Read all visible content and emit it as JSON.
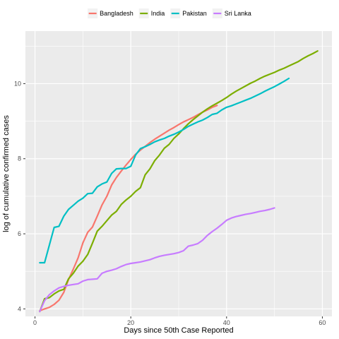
{
  "chart_data": {
    "type": "line",
    "title": "",
    "xlabel": "Days since 50th Case Reported",
    "ylabel": "log of cumulative confirmed cases",
    "xlim": [
      -2,
      62
    ],
    "ylim": [
      3.8,
      11.4
    ],
    "x_ticks": [
      0,
      20,
      40,
      60
    ],
    "y_ticks": [
      4,
      6,
      8,
      10
    ],
    "grid": true,
    "legend_position": "top",
    "series": [
      {
        "name": "Bangladesh",
        "color": "#F8766D",
        "x": [
          1,
          2,
          3,
          4,
          5,
          6,
          7,
          8,
          9,
          10,
          11,
          12,
          13,
          14,
          15,
          16,
          17,
          18,
          19,
          20,
          21,
          22,
          23,
          24,
          25,
          26,
          27,
          28,
          29,
          30,
          31,
          32,
          33,
          34,
          35,
          36,
          37,
          38
        ],
        "y": [
          3.95,
          4.0,
          4.04,
          4.12,
          4.23,
          4.44,
          4.78,
          5.06,
          5.36,
          5.76,
          6.04,
          6.18,
          6.47,
          6.77,
          7.0,
          7.3,
          7.5,
          7.67,
          7.83,
          7.98,
          8.12,
          8.23,
          8.33,
          8.43,
          8.52,
          8.6,
          8.68,
          8.76,
          8.83,
          8.91,
          8.98,
          9.04,
          9.1,
          9.17,
          9.24,
          9.3,
          9.37,
          9.42
        ]
      },
      {
        "name": "India",
        "color": "#7CAE00",
        "x": [
          1,
          2,
          3,
          4,
          5,
          6,
          7,
          8,
          9,
          10,
          11,
          12,
          13,
          14,
          15,
          16,
          17,
          18,
          19,
          20,
          21,
          22,
          23,
          24,
          25,
          26,
          27,
          28,
          29,
          30,
          31,
          32,
          33,
          34,
          35,
          36,
          37,
          38,
          39,
          40,
          41,
          42,
          43,
          44,
          45,
          46,
          47,
          48,
          49,
          50,
          51,
          52,
          53,
          54,
          55,
          56,
          57,
          58,
          59
        ],
        "y": [
          3.93,
          4.27,
          4.3,
          4.4,
          4.48,
          4.52,
          4.8,
          4.95,
          5.14,
          5.27,
          5.45,
          5.75,
          6.07,
          6.2,
          6.35,
          6.5,
          6.6,
          6.78,
          6.9,
          7.0,
          7.13,
          7.23,
          7.57,
          7.73,
          7.95,
          8.1,
          8.28,
          8.38,
          8.54,
          8.66,
          8.8,
          8.93,
          9.04,
          9.14,
          9.24,
          9.33,
          9.41,
          9.48,
          9.55,
          9.63,
          9.72,
          9.8,
          9.87,
          9.94,
          10.01,
          10.07,
          10.14,
          10.2,
          10.25,
          10.3,
          10.36,
          10.41,
          10.47,
          10.53,
          10.59,
          10.67,
          10.74,
          10.8,
          10.87
        ]
      },
      {
        "name": "Pakistan",
        "color": "#00BFC4",
        "x": [
          1,
          2,
          3,
          4,
          5,
          6,
          7,
          8,
          9,
          10,
          11,
          12,
          13,
          14,
          15,
          16,
          17,
          18,
          19,
          20,
          21,
          22,
          23,
          24,
          25,
          26,
          27,
          28,
          29,
          30,
          31,
          32,
          33,
          34,
          35,
          36,
          37,
          38,
          39,
          40,
          41,
          42,
          43,
          44,
          45,
          46,
          47,
          48,
          49,
          50,
          51,
          52,
          53
        ],
        "y": [
          5.23,
          5.23,
          5.7,
          6.17,
          6.2,
          6.47,
          6.65,
          6.76,
          6.87,
          6.95,
          7.07,
          7.08,
          7.25,
          7.33,
          7.38,
          7.61,
          7.73,
          7.74,
          7.74,
          7.8,
          8.1,
          8.27,
          8.32,
          8.38,
          8.45,
          8.5,
          8.54,
          8.6,
          8.65,
          8.71,
          8.78,
          8.86,
          8.92,
          8.98,
          9.03,
          9.1,
          9.18,
          9.21,
          9.3,
          9.37,
          9.41,
          9.46,
          9.51,
          9.56,
          9.61,
          9.67,
          9.73,
          9.8,
          9.86,
          9.92,
          9.99,
          10.06,
          10.14
        ]
      },
      {
        "name": "Sri Lanka",
        "color": "#C77CFF",
        "x": [
          1,
          2,
          3,
          4,
          5,
          6,
          7,
          8,
          9,
          10,
          11,
          12,
          13,
          14,
          15,
          16,
          17,
          18,
          19,
          20,
          21,
          22,
          23,
          24,
          25,
          26,
          27,
          28,
          29,
          30,
          31,
          32,
          33,
          34,
          35,
          36,
          37,
          38,
          39,
          40,
          41,
          42,
          43,
          44,
          45,
          46,
          47,
          48,
          49,
          50
        ],
        "y": [
          3.93,
          4.22,
          4.38,
          4.48,
          4.56,
          4.6,
          4.63,
          4.65,
          4.67,
          4.74,
          4.78,
          4.79,
          4.8,
          4.95,
          5.0,
          5.03,
          5.07,
          5.13,
          5.18,
          5.21,
          5.23,
          5.25,
          5.28,
          5.31,
          5.36,
          5.4,
          5.43,
          5.45,
          5.47,
          5.5,
          5.55,
          5.67,
          5.7,
          5.74,
          5.83,
          5.96,
          6.06,
          6.15,
          6.25,
          6.36,
          6.42,
          6.46,
          6.49,
          6.52,
          6.54,
          6.57,
          6.6,
          6.62,
          6.65,
          6.69
        ]
      }
    ]
  }
}
